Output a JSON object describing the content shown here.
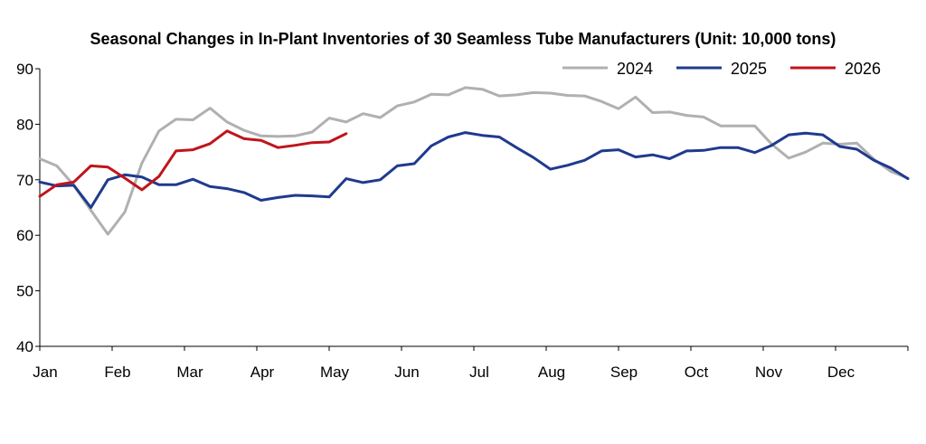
{
  "chart_data": {
    "type": "line",
    "title": "Seasonal Changes in In-Plant Inventories of 30 Seamless Tube Manufacturers (Unit: 10,000 tons)",
    "xlabel": "",
    "ylabel": "",
    "ylim": [
      40,
      90
    ],
    "yticks": [
      40,
      50,
      60,
      70,
      80,
      90
    ],
    "x_tick_labels": [
      "Jan",
      "Feb",
      "Mar",
      "Apr",
      "May",
      "Jun",
      "Jul",
      "Aug",
      "Sep",
      "Oct",
      "Nov",
      "Dec"
    ],
    "x_unit": "week",
    "weeks_per_year": 48,
    "grid": false,
    "legend_position": "top-right",
    "series": [
      {
        "name": "2024",
        "color": "#b0b0b0",
        "values": [
          73.8,
          72.5,
          69,
          64.5,
          60.2,
          64.2,
          73,
          78.8,
          80.9,
          80.8,
          82.9,
          80.4,
          78.9,
          77.9,
          77.8,
          77.9,
          78.6,
          81.1,
          80.4,
          81.9,
          81.2,
          83.3,
          84,
          85.4,
          85.3,
          86.6,
          86.3,
          85.1,
          85.3,
          85.7,
          85.6,
          85.2,
          85.1,
          84.1,
          82.8,
          84.9,
          82.1,
          82.2,
          81.6,
          81.3,
          79.7,
          79.7,
          79.7,
          76.4,
          73.9,
          75,
          76.6,
          76.4,
          76.6,
          73.7,
          71.5,
          70.3
        ]
      },
      {
        "name": "2025",
        "color": "#1f3a8f",
        "values": [
          69.6,
          68.9,
          69,
          65,
          70,
          70.9,
          70.5,
          69.1,
          69.1,
          70.1,
          68.8,
          68.4,
          67.7,
          66.3,
          66.8,
          67.2,
          67.1,
          66.9,
          70.2,
          69.5,
          70,
          72.5,
          72.9,
          76.1,
          77.7,
          78.5,
          78,
          77.7,
          75.8,
          74,
          71.9,
          72.6,
          73.5,
          75.2,
          75.4,
          74.1,
          74.5,
          73.8,
          75.2,
          75.3,
          75.8,
          75.8,
          74.9,
          76.2,
          78.1,
          78.4,
          78.1,
          76,
          75.5,
          73.5,
          72.1,
          70.2
        ]
      },
      {
        "name": "2026",
        "color": "#c0141b",
        "values": [
          67,
          69.1,
          69.6,
          72.5,
          72.3,
          70.3,
          68.2,
          70.6,
          75.2,
          75.4,
          76.5,
          78.8,
          77.4,
          77.1,
          75.8,
          76.2,
          76.7,
          76.8,
          78.3
        ]
      }
    ]
  }
}
